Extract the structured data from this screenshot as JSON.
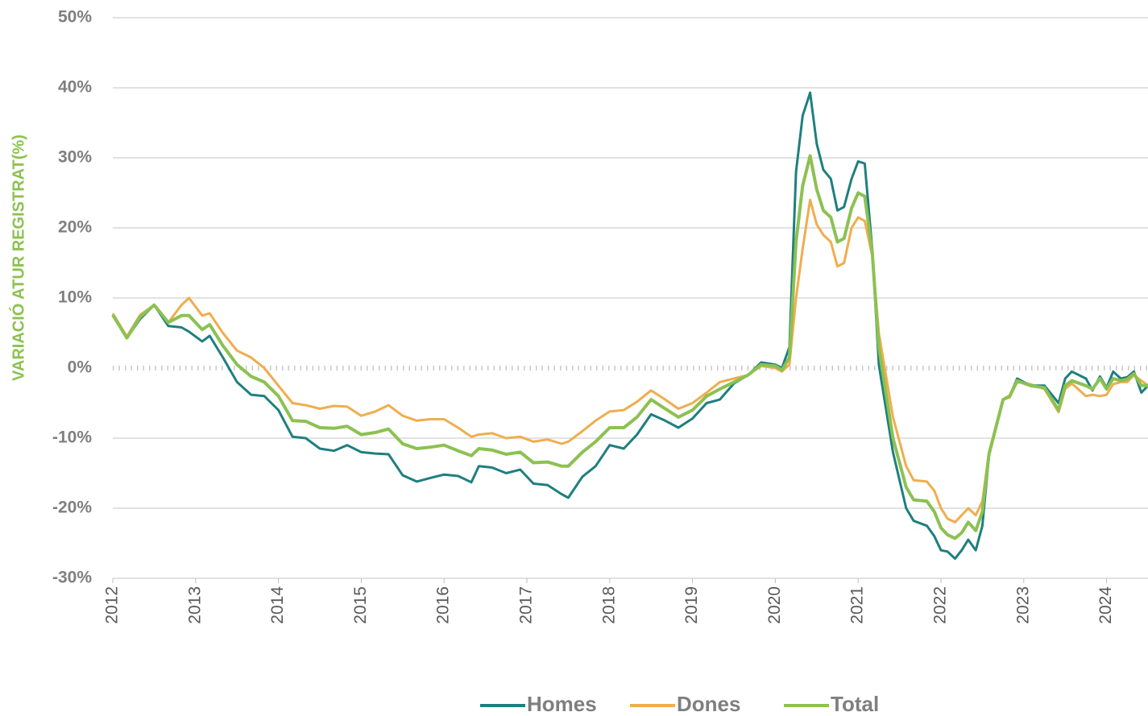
{
  "chart_data": {
    "type": "line",
    "ylabel": "VARIACIÓ ATUR REGISTRAT(%)",
    "x": [
      2012.0,
      2012.17,
      2012.33,
      2012.5,
      2012.67,
      2012.83,
      2012.92,
      2013.08,
      2013.17,
      2013.33,
      2013.5,
      2013.67,
      2013.83,
      2014.0,
      2014.17,
      2014.33,
      2014.5,
      2014.67,
      2014.83,
      2015.0,
      2015.17,
      2015.33,
      2015.5,
      2015.67,
      2015.83,
      2016.0,
      2016.17,
      2016.33,
      2016.42,
      2016.58,
      2016.75,
      2016.92,
      2017.08,
      2017.25,
      2017.42,
      2017.5,
      2017.67,
      2017.83,
      2018.0,
      2018.17,
      2018.33,
      2018.5,
      2018.67,
      2018.83,
      2019.0,
      2019.17,
      2019.33,
      2019.5,
      2019.67,
      2019.83,
      2020.0,
      2020.08,
      2020.17,
      2020.25,
      2020.33,
      2020.42,
      2020.5,
      2020.58,
      2020.67,
      2020.75,
      2020.83,
      2020.92,
      2021.0,
      2021.08,
      2021.17,
      2021.25,
      2021.42,
      2021.58,
      2021.67,
      2021.83,
      2021.92,
      2022.0,
      2022.08,
      2022.17,
      2022.25,
      2022.33,
      2022.42,
      2022.5,
      2022.58,
      2022.75,
      2022.83,
      2022.92,
      2023.08,
      2023.25,
      2023.42,
      2023.5,
      2023.58,
      2023.75,
      2023.83,
      2023.92,
      2024.0,
      2024.08,
      2024.17,
      2024.25,
      2024.33,
      2024.42,
      2024.5
    ],
    "series": [
      {
        "name": "Homes",
        "color": "#1f7f7f",
        "values": [
          7.5,
          4.3,
          7.0,
          9.0,
          6.0,
          5.8,
          5.2,
          3.8,
          4.6,
          1.5,
          -2.0,
          -3.8,
          -4.0,
          -6.0,
          -9.8,
          -10.0,
          -11.5,
          -11.8,
          -11.0,
          -12.0,
          -12.2,
          -12.3,
          -15.3,
          -16.2,
          -15.7,
          -15.2,
          -15.4,
          -16.3,
          -14.0,
          -14.2,
          -15.0,
          -14.5,
          -16.5,
          -16.7,
          -18.0,
          -18.5,
          -15.5,
          -14.0,
          -11.0,
          -11.5,
          -9.5,
          -6.6,
          -7.5,
          -8.5,
          -7.2,
          -5.0,
          -4.5,
          -2.2,
          -1.0,
          0.8,
          0.5,
          0.0,
          3.0,
          28.0,
          36.0,
          39.3,
          32.0,
          28.3,
          27.0,
          22.5,
          23.0,
          27.0,
          29.5,
          29.2,
          17.0,
          0.5,
          -12.0,
          -20.0,
          -21.8,
          -22.5,
          -24.0,
          -26.0,
          -26.2,
          -27.2,
          -26.0,
          -24.5,
          -26.0,
          -22.5,
          -12.5,
          -4.5,
          -4.0,
          -1.5,
          -2.5,
          -2.5,
          -5.0,
          -1.5,
          -0.5,
          -1.5,
          -3.2,
          -1.2,
          -2.8,
          -0.5,
          -1.5,
          -1.3,
          -0.5,
          -3.5,
          -2.5
        ]
      },
      {
        "name": "Dones",
        "color": "#f0ad4e",
        "values": [
          7.8,
          4.5,
          7.6,
          9.0,
          6.5,
          9.0,
          10.0,
          7.5,
          7.8,
          5.0,
          2.5,
          1.5,
          0.0,
          -2.5,
          -5.0,
          -5.3,
          -5.8,
          -5.4,
          -5.5,
          -6.8,
          -6.2,
          -5.3,
          -6.8,
          -7.5,
          -7.3,
          -7.3,
          -8.5,
          -9.8,
          -9.5,
          -9.3,
          -10.0,
          -9.8,
          -10.5,
          -10.2,
          -10.8,
          -10.5,
          -9.0,
          -7.5,
          -6.2,
          -6.0,
          -4.8,
          -3.2,
          -4.5,
          -5.8,
          -5.0,
          -3.5,
          -2.0,
          -1.5,
          -1.0,
          0.3,
          0.0,
          -0.5,
          0.5,
          10.0,
          17.0,
          24.0,
          20.5,
          19.0,
          18.0,
          14.5,
          15.0,
          20.0,
          21.5,
          21.0,
          16.0,
          5.0,
          -7.0,
          -14.0,
          -16.0,
          -16.2,
          -17.5,
          -20.0,
          -21.5,
          -22.0,
          -21.0,
          -20.0,
          -21.0,
          -19.0,
          -12.0,
          -4.5,
          -4.2,
          -2.0,
          -2.3,
          -3.0,
          -6.3,
          -3.0,
          -2.2,
          -4.0,
          -3.8,
          -4.0,
          -3.8,
          -2.3,
          -2.0,
          -2.0,
          -1.0,
          -1.8,
          -2.5
        ]
      },
      {
        "name": "Total",
        "color": "#8cc152",
        "values": [
          7.6,
          4.3,
          7.3,
          9.0,
          6.5,
          7.5,
          7.5,
          5.5,
          6.2,
          3.2,
          0.5,
          -1.2,
          -2.0,
          -4.0,
          -7.5,
          -7.6,
          -8.5,
          -8.6,
          -8.3,
          -9.5,
          -9.2,
          -8.7,
          -10.8,
          -11.5,
          -11.3,
          -11.0,
          -11.8,
          -12.5,
          -11.5,
          -11.7,
          -12.3,
          -12.0,
          -13.5,
          -13.4,
          -14.0,
          -14.0,
          -12.0,
          -10.5,
          -8.5,
          -8.5,
          -7.0,
          -4.5,
          -5.8,
          -7.0,
          -6.0,
          -4.0,
          -3.0,
          -2.0,
          -1.0,
          0.5,
          0.3,
          -0.3,
          1.5,
          18.0,
          26.0,
          30.3,
          25.5,
          22.5,
          21.5,
          18.0,
          18.5,
          22.8,
          25.0,
          24.5,
          16.5,
          3.0,
          -10.0,
          -17.0,
          -18.8,
          -19.0,
          -20.5,
          -22.8,
          -23.8,
          -24.3,
          -23.5,
          -22.0,
          -23.2,
          -20.5,
          -12.3,
          -4.5,
          -4.0,
          -1.8,
          -2.5,
          -2.8,
          -6.0,
          -2.5,
          -1.8,
          -2.5,
          -3.0,
          -1.5,
          -3.0,
          -1.5,
          -1.8,
          -1.6,
          -0.8,
          -2.5,
          -2.5
        ]
      }
    ],
    "xlim": [
      2012,
      2024.5
    ],
    "xticks": [
      2012,
      2013,
      2014,
      2015,
      2016,
      2017,
      2018,
      2019,
      2020,
      2021,
      2022,
      2023,
      2024
    ],
    "ylim": [
      -30,
      50
    ],
    "yticks": [
      {
        "value": -30,
        "label": "-30%"
      },
      {
        "value": -20,
        "label": "-20%"
      },
      {
        "value": -10,
        "label": "-10%"
      },
      {
        "value": 0,
        "label": "0%"
      },
      {
        "value": 10,
        "label": "10%"
      },
      {
        "value": 20,
        "label": "20%"
      },
      {
        "value": 30,
        "label": "30%"
      },
      {
        "value": 40,
        "label": "40%"
      },
      {
        "value": 50,
        "label": "50%"
      }
    ],
    "grid": true,
    "legend": "bottom"
  }
}
